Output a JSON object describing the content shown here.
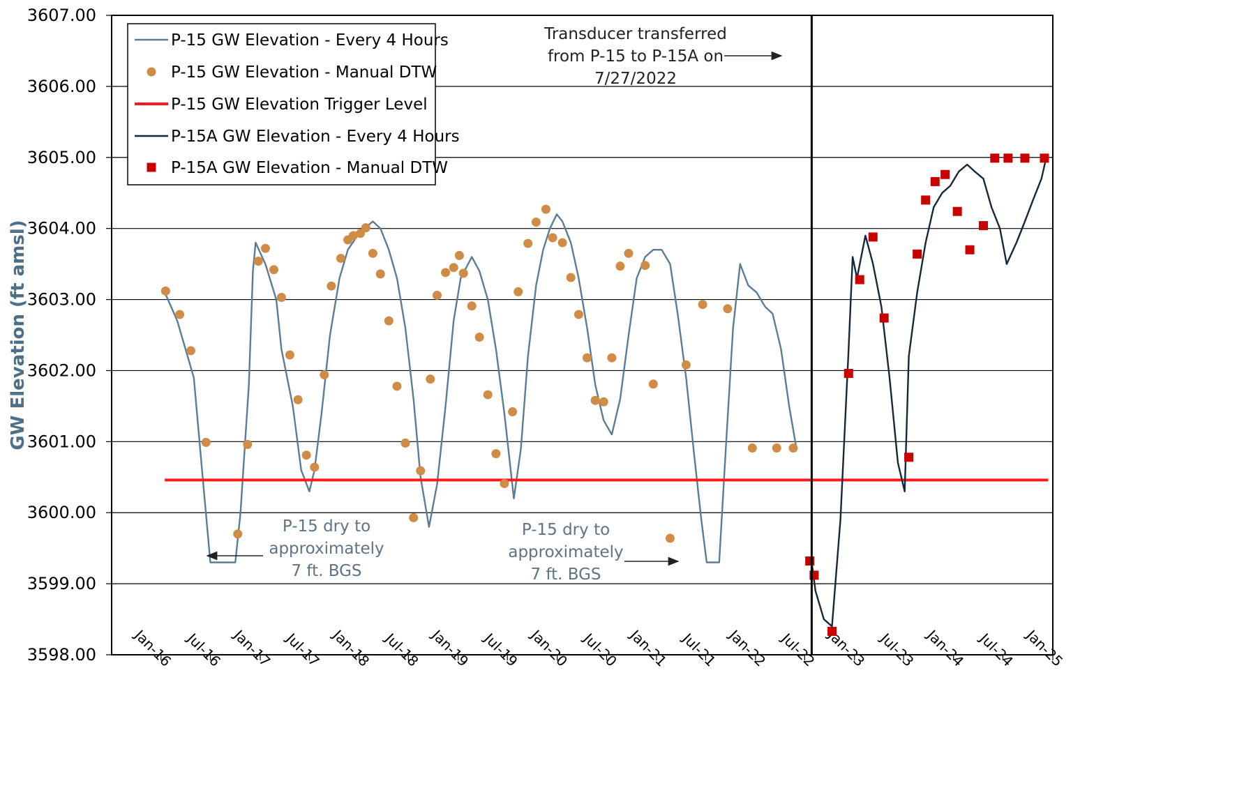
{
  "chart_data": {
    "type": "line",
    "ylabel": "GW Elevation (ft amsl)",
    "xlabel": "",
    "ylim": [
      3598.0,
      3607.0
    ],
    "y_ticks": [
      "3598.00",
      "3599.00",
      "3600.00",
      "3601.00",
      "3602.00",
      "3603.00",
      "3604.00",
      "3605.00",
      "3606.00",
      "3607.00"
    ],
    "x_ticks": [
      "Jan-16",
      "Jul-16",
      "Jan-17",
      "Jul-17",
      "Jan-18",
      "Jul-18",
      "Jan-19",
      "Jul-19",
      "Jan-20",
      "Jul-20",
      "Jan-21",
      "Jul-21",
      "Jan-22",
      "Jul-22",
      "Jan-23",
      "Jul-23",
      "Jan-24",
      "Jul-24",
      "Jan-25"
    ],
    "grid": "horizontal",
    "legend_position": "top-left",
    "colors": {
      "p15_line": "#5b7c95",
      "p15_manual": "#d08c46",
      "trigger": "#ff1a1a",
      "p15a_line": "#13283b",
      "p15a_manual": "#c80000"
    },
    "series": [
      {
        "name": "P-15 GW Elevation - Every 4 Hours",
        "type": "line",
        "x": [
          "2016-01-15",
          "2016-03-01",
          "2016-05-01",
          "2016-06-05",
          "2016-07-01",
          "2016-08-15",
          "2016-10-01",
          "2016-10-20",
          "2016-11-20",
          "2016-12-05",
          "2016-12-15",
          "2017-01-20",
          "2017-03-01",
          "2017-03-20",
          "2017-05-01",
          "2017-06-01",
          "2017-07-01",
          "2017-07-20",
          "2017-08-15",
          "2017-09-15",
          "2017-10-20",
          "2017-11-20",
          "2017-12-25",
          "2018-01-20",
          "2018-02-20",
          "2018-03-20",
          "2018-04-20",
          "2018-05-20",
          "2018-06-20",
          "2018-07-20",
          "2018-08-15",
          "2018-09-15",
          "2018-10-15",
          "2018-11-15",
          "2018-12-15",
          "2019-01-10",
          "2019-02-20",
          "2019-03-20",
          "2019-04-20",
          "2019-05-20",
          "2019-06-20",
          "2019-07-25",
          "2019-08-20",
          "2019-09-15",
          "2019-10-15",
          "2019-11-10",
          "2019-12-05",
          "2019-12-30",
          "2020-01-20",
          "2020-02-20",
          "2020-03-20",
          "2020-04-20",
          "2020-05-20",
          "2020-06-20",
          "2020-07-20",
          "2020-08-20",
          "2020-09-20",
          "2020-10-20",
          "2020-11-20",
          "2020-12-20",
          "2021-01-20",
          "2021-02-20",
          "2021-03-20",
          "2021-04-20",
          "2021-05-20",
          "2021-06-15",
          "2021-07-05",
          "2021-07-25",
          "2021-08-20",
          "2021-09-15",
          "2021-10-10",
          "2021-11-05",
          "2021-12-05",
          "2022-01-05",
          "2022-02-05",
          "2022-03-05",
          "2022-04-05",
          "2022-05-05",
          "2022-06-01"
        ],
        "y": [
          3603.1,
          3602.7,
          3601.9,
          3600.4,
          3599.3,
          3599.3,
          3599.3,
          3600.0,
          3601.8,
          3603.4,
          3603.8,
          3603.5,
          3603.0,
          3602.3,
          3601.5,
          3600.6,
          3600.3,
          3600.6,
          3601.4,
          3602.5,
          3603.3,
          3603.7,
          3603.9,
          3604.0,
          3604.1,
          3604.0,
          3603.7,
          3603.3,
          3602.6,
          3601.6,
          3600.5,
          3599.8,
          3600.4,
          3601.5,
          3602.7,
          3603.3,
          3603.6,
          3603.4,
          3603.0,
          3602.3,
          3601.4,
          3600.2,
          3600.9,
          3602.2,
          3603.2,
          3603.7,
          3604.0,
          3604.2,
          3604.1,
          3603.8,
          3603.3,
          3602.6,
          3601.8,
          3601.3,
          3601.1,
          3601.6,
          3602.5,
          3603.3,
          3603.6,
          3603.7,
          3603.7,
          3603.5,
          3602.8,
          3601.9,
          3600.8,
          3599.9,
          3599.3,
          3599.3,
          3599.3,
          3601.0,
          3602.6,
          3603.5,
          3603.2,
          3603.1,
          3602.9,
          3602.8,
          3602.3,
          3601.5,
          3600.9
        ]
      },
      {
        "name": "P-15 GW Elevation - Manual DTW",
        "type": "scatter",
        "x": [
          "2016-01-18",
          "2016-03-10",
          "2016-04-20",
          "2016-06-15",
          "2016-10-10",
          "2016-11-15",
          "2016-12-25",
          "2017-01-20",
          "2017-02-20",
          "2017-03-20",
          "2017-04-20",
          "2017-05-20",
          "2017-06-20",
          "2017-07-20",
          "2017-08-25",
          "2017-09-20",
          "2017-10-25",
          "2017-11-20",
          "2017-12-10",
          "2018-01-05",
          "2018-01-25",
          "2018-02-20",
          "2018-03-20",
          "2018-04-20",
          "2018-05-20",
          "2018-06-20",
          "2018-07-20",
          "2018-08-15",
          "2018-09-20",
          "2018-10-15",
          "2018-11-15",
          "2018-12-15",
          "2019-01-05",
          "2019-01-20",
          "2019-02-20",
          "2019-03-20",
          "2019-04-20",
          "2019-05-20",
          "2019-06-20",
          "2019-07-20",
          "2019-08-10",
          "2019-09-15",
          "2019-10-15",
          "2019-11-20",
          "2019-12-15",
          "2020-01-20",
          "2020-02-20",
          "2020-03-20",
          "2020-04-20",
          "2020-05-20",
          "2020-06-20",
          "2020-07-20",
          "2020-08-20",
          "2020-09-20",
          "2020-11-20",
          "2020-12-20",
          "2021-02-20",
          "2021-04-20",
          "2021-06-20",
          "2021-09-20",
          "2021-12-20",
          "2022-03-20",
          "2022-05-20"
        ],
        "y": [
          3603.12,
          3602.79,
          3602.28,
          3600.99,
          3599.7,
          3600.96,
          3603.54,
          3603.72,
          3603.42,
          3603.03,
          3602.22,
          3601.59,
          3600.81,
          3600.64,
          3601.94,
          3603.19,
          3603.58,
          3603.84,
          3603.9,
          3603.93,
          3604.01,
          3603.65,
          3603.36,
          3602.7,
          3601.78,
          3600.98,
          3599.93,
          3600.59,
          3601.88,
          3603.06,
          3603.38,
          3603.45,
          3603.62,
          3603.37,
          3602.91,
          3602.47,
          3601.66,
          3600.83,
          3600.41,
          3601.42,
          3603.11,
          3603.79,
          3604.09,
          3604.27,
          3603.87,
          3603.8,
          3603.31,
          3602.79,
          3602.18,
          3601.58,
          3601.56,
          3602.18,
          3603.47,
          3603.65,
          3603.48,
          3601.81,
          3599.64,
          3602.08,
          3602.93,
          3602.87,
          3600.91,
          3600.91,
          3600.91
        ]
      },
      {
        "name": "P-15 GW Elevation Trigger Level",
        "type": "line",
        "x": [
          "2016-01-15",
          "2024-12-15"
        ],
        "y": [
          3600.46,
          3600.46
        ]
      },
      {
        "name": "P-15A GW Elevation - Every 4 Hours",
        "type": "line",
        "x": [
          "2022-07-27",
          "2022-08-10",
          "2022-09-10",
          "2022-10-10",
          "2022-11-10",
          "2022-12-10",
          "2022-12-25",
          "2023-01-10",
          "2023-02-10",
          "2023-03-10",
          "2023-04-10",
          "2023-05-10",
          "2023-06-10",
          "2023-07-05",
          "2023-07-20",
          "2023-08-20",
          "2023-09-20",
          "2023-10-20",
          "2023-11-20",
          "2023-12-20",
          "2024-01-20",
          "2024-02-20",
          "2024-03-20",
          "2024-04-20",
          "2024-05-20",
          "2024-06-20",
          "2024-07-15",
          "2024-08-20",
          "2024-09-20",
          "2024-10-20",
          "2024-11-20",
          "2024-12-05"
        ],
        "y": [
          3599.3,
          3598.9,
          3598.5,
          3598.4,
          3599.9,
          3602.3,
          3603.6,
          3603.3,
          3603.9,
          3603.5,
          3602.9,
          3601.9,
          3600.7,
          3600.3,
          3602.2,
          3603.1,
          3603.8,
          3604.3,
          3604.5,
          3604.6,
          3604.8,
          3604.9,
          3604.8,
          3604.7,
          3604.3,
          3604.0,
          3603.5,
          3603.8,
          3604.1,
          3604.4,
          3604.7,
          3604.95
        ]
      },
      {
        "name": "P-15A GW Elevation - Manual DTW",
        "type": "scatter",
        "x": [
          "2022-07-20",
          "2022-08-05",
          "2022-10-10",
          "2022-12-10",
          "2023-01-20",
          "2023-03-10",
          "2023-04-20",
          "2023-07-20",
          "2023-08-20",
          "2023-09-20",
          "2023-10-25",
          "2023-12-01",
          "2024-01-15",
          "2024-03-01",
          "2024-04-20",
          "2024-06-01",
          "2024-07-20",
          "2024-09-20",
          "2024-12-01"
        ],
        "y": [
          3599.32,
          3599.12,
          3598.33,
          3601.96,
          3603.28,
          3603.88,
          3602.74,
          3600.78,
          3603.64,
          3604.4,
          3604.66,
          3604.76,
          3604.24,
          3603.7,
          3604.04,
          3604.99,
          3604.99,
          3604.99,
          3604.99
        ]
      }
    ],
    "legend": [
      "P-15 GW Elevation - Every 4 Hours",
      "P-15 GW Elevation - Manual DTW",
      "P-15 GW Elevation Trigger Level",
      "P-15A GW Elevation - Every 4 Hours",
      "P-15A GW Elevation - Manual DTW"
    ],
    "annotations": [
      {
        "text": [
          "Transducer transferred",
          "from P-15 to P-15A on",
          "7/27/2022"
        ]
      },
      {
        "text": [
          "P-15 dry to",
          "approximately",
          "7 ft. BGS"
        ]
      },
      {
        "text": [
          "P-15 dry to",
          "approximately",
          "7 ft. BGS"
        ]
      }
    ],
    "transfer_date": "2022-07-27"
  }
}
